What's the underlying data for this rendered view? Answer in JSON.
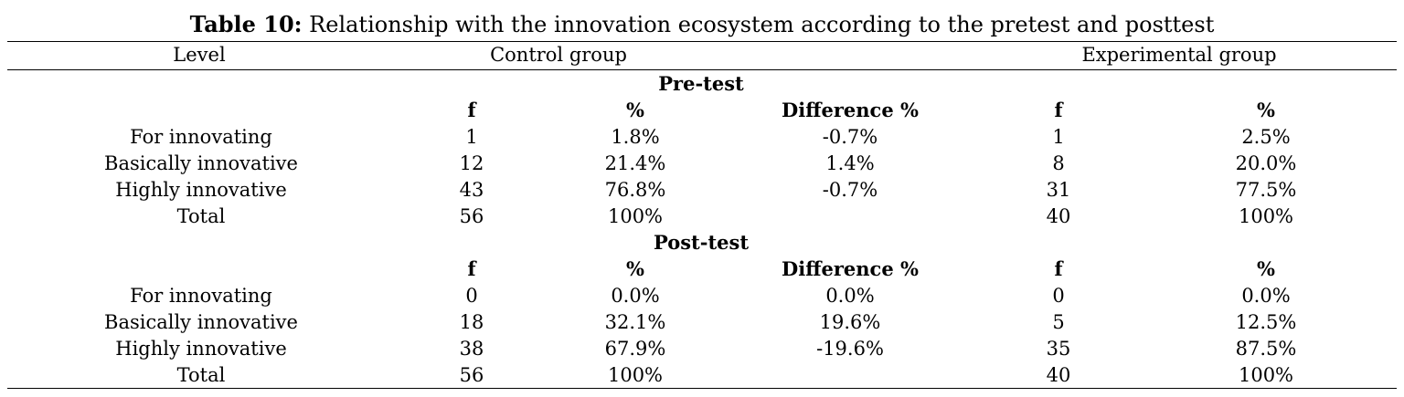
{
  "caption": {
    "label": "Table 10:",
    "text": " Relationship with the innovation ecosystem according to the pretest and posttest"
  },
  "headers": {
    "level": "Level",
    "control": "Control group",
    "experimental": "Experimental group"
  },
  "sections": [
    {
      "title": "Pre-test",
      "sub": [
        "f",
        "%",
        "Difference %",
        "f",
        "%"
      ],
      "rows": [
        [
          "For innovating",
          "1",
          "1.8%",
          "-0.7%",
          "1",
          "2.5%"
        ],
        [
          "Basically innovative",
          "12",
          "21.4%",
          "1.4%",
          "8",
          "20.0%"
        ],
        [
          "Highly innovative",
          "43",
          "76.8%",
          "-0.7%",
          "31",
          "77.5%"
        ],
        [
          "Total",
          "56",
          "100%",
          "",
          "40",
          "100%"
        ]
      ]
    },
    {
      "title": "Post-test",
      "sub": [
        "f",
        "%",
        "Difference %",
        "f",
        "%"
      ],
      "rows": [
        [
          "For innovating",
          "0",
          "0.0%",
          "0.0%",
          "0",
          "0.0%"
        ],
        [
          "Basically innovative",
          "18",
          "32.1%",
          "19.6%",
          "5",
          "12.5%"
        ],
        [
          "Highly innovative",
          "38",
          "67.9%",
          "-19.6%",
          "35",
          "87.5%"
        ],
        [
          "Total",
          "56",
          "100%",
          "",
          "40",
          "100%"
        ]
      ]
    }
  ]
}
